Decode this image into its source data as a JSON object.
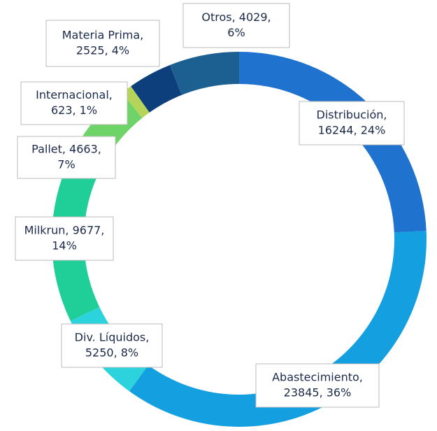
{
  "chart_data": {
    "type": "donut",
    "categories": [
      "Distribución",
      "Abastecimiento",
      "Div. Líquidos",
      "Milkrun",
      "Pallet",
      "Internacional",
      "Materia Prima",
      "Otros"
    ],
    "values": [
      16244,
      23845,
      5250,
      9677,
      4663,
      623,
      2525,
      4029
    ],
    "value_labels": [
      [
        "Distribución,",
        "16244, 24%"
      ],
      [
        "Abastecimiento,",
        "23845, 36%"
      ],
      [
        "Div. Líquidos,",
        "5250, 8%"
      ],
      [
        "Milkrun, 9677,",
        "14%"
      ],
      [
        "Pallet, 4663,",
        "7%"
      ],
      [
        "Internacional,",
        "623, 1%"
      ],
      [
        "Materia Prima,",
        "2525, 4%"
      ],
      [
        "Otros, 4029,",
        "6%"
      ]
    ],
    "colors": [
      "#1f73cf",
      "#149fe0",
      "#2dd3dc",
      "#20cf97",
      "#6fd468",
      "#b6d35a",
      "#0c3f7c",
      "#1b6090"
    ]
  }
}
